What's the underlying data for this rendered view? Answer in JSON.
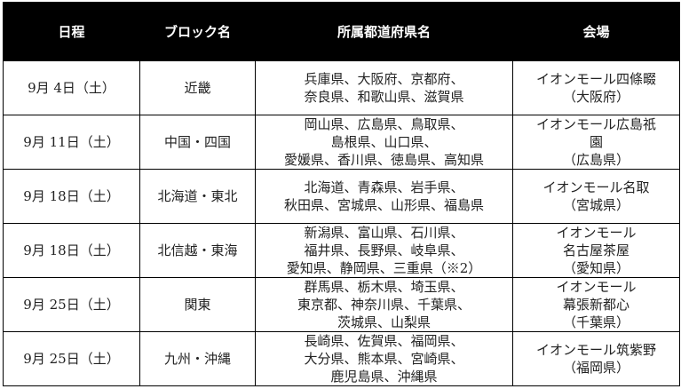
{
  "headers": [
    "日程",
    "ブロック名",
    "所属都道府県名",
    "会場"
  ],
  "rows": [
    {
      "date": "9月 4日（土）",
      "block": "近畿",
      "prefectures": "兵庫県、大阪府、京都府、\n奈良県、和歌山県、滋賀県",
      "venue": "イオンモール四條畷\n（大阪府）"
    },
    {
      "date": "9月 11日（土）",
      "block": "中国・四国",
      "prefectures": "岡山県、広島県、鳥取県、\n島根県、山口県、\n愛媛県、香川県、徳島県、高知県",
      "venue": "イオンモール広島祇\n園\n（広島県）"
    },
    {
      "date": "9月 18日（土）",
      "block": "北海道・東北",
      "prefectures": "北海道、青森県、岩手県、\n秋田県、宮城県、山形県、福島県",
      "venue": "イオンモール名取\n（宮城県）"
    },
    {
      "date": "9月 18日（土）",
      "block": "北信越・東海",
      "prefectures": "新潟県、富山県、石川県、\n福井県、長野県、岐阜県、\n愛知県、静岡県、三重県（※2）",
      "venue": "イオンモール\n名古屋茶屋\n（愛知県）"
    },
    {
      "date": "9月 25日（土）",
      "block": "関東",
      "prefectures": "群馬県、栃木県、埼玉県、\n東京都、神奈川県、千葉県、\n茨城県、山梨県",
      "venue": "イオンモール\n幕張新都心\n（千葉県）"
    },
    {
      "date": "9月 25日（土）",
      "block": "九州・沖縄",
      "prefectures": "長崎県、佐賀県、福岡県、\n大分県、熊本県、宮崎県、\n鹿児島県、沖縄県",
      "venue": "イオンモール筑紫野\n（福岡県）"
    }
  ]
}
